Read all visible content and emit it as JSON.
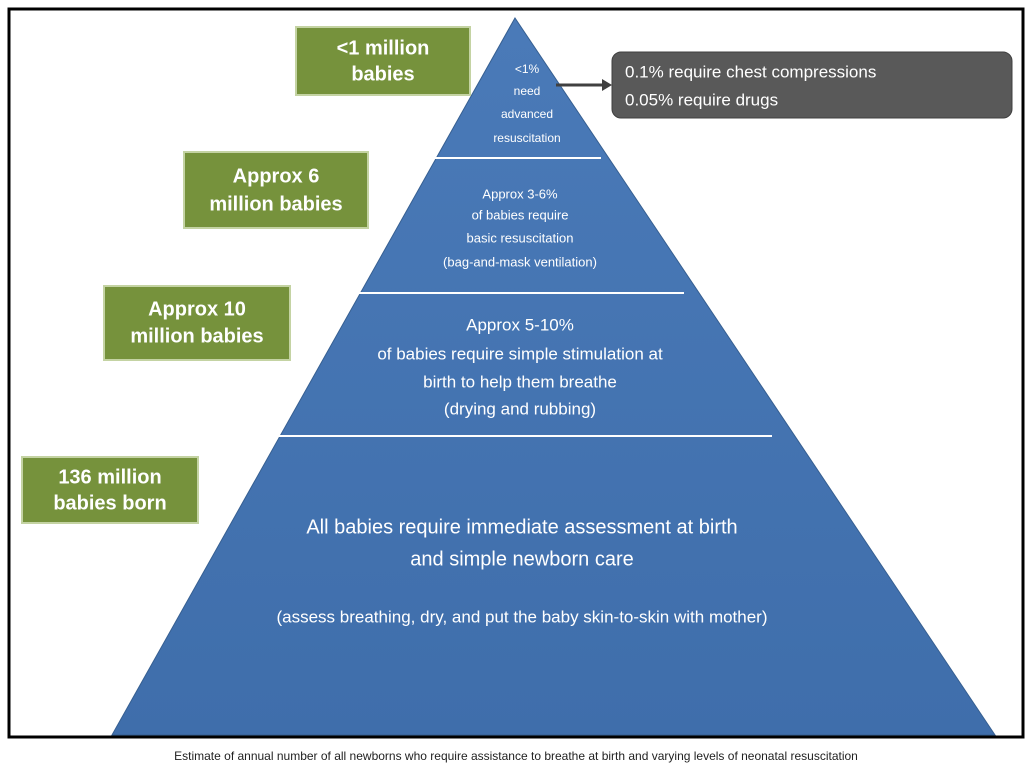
{
  "levels": [
    {
      "count": [
        "<1 million",
        "babies"
      ],
      "description": [
        "<1%",
        "need",
        "advanced",
        "resuscitation"
      ]
    },
    {
      "count": [
        "Approx 6",
        "million babies"
      ],
      "description": [
        "Approx 3-6%",
        "of babies require",
        "basic resuscitation",
        "(bag-and-mask ventilation)"
      ]
    },
    {
      "count": [
        "Approx 10",
        "million babies"
      ],
      "description": [
        "Approx 5-10%",
        "of babies require simple stimulation at",
        "birth to help them breathe",
        "(drying and rubbing)"
      ]
    },
    {
      "count": [
        "136 million",
        "babies born"
      ],
      "description": [
        "All babies require immediate assessment at birth",
        "and simple newborn care",
        "(assess breathing, dry, and put the baby skin-to-skin with mother)"
      ]
    }
  ],
  "callout": [
    "0.1% require chest compressions",
    "0.05% require drugs"
  ],
  "caption": "Estimate of annual number of all newborns who require assistance to breathe at birth and varying levels of neonatal resuscitation"
}
